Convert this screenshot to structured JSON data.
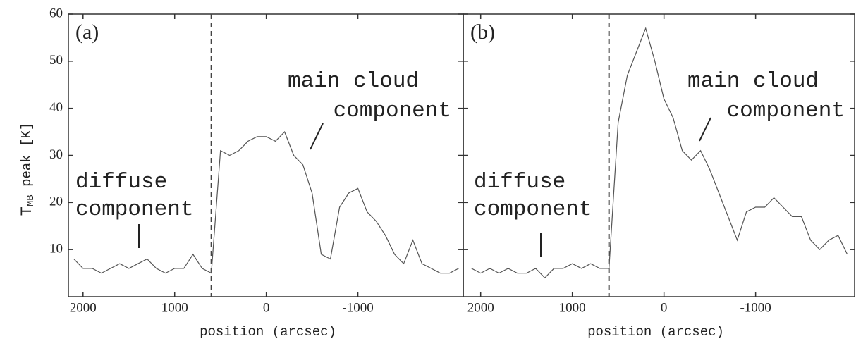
{
  "chart_data": [
    {
      "type": "line",
      "title": "(a)",
      "xlabel": "position (arcsec)",
      "ylabel": {
        "main": "T",
        "sub": "MB",
        "rest": " peak [K]"
      },
      "color": "#555555",
      "x": [
        2100,
        2000,
        1900,
        1800,
        1700,
        1600,
        1500,
        1400,
        1300,
        1200,
        1100,
        1000,
        900,
        800,
        700,
        600,
        500,
        400,
        300,
        200,
        100,
        0,
        -100,
        -200,
        -300,
        -400,
        -500,
        -600,
        -700,
        -800,
        -900,
        -1000,
        -1100,
        -1200,
        -1300,
        -1400,
        -1500,
        -1600,
        -1700,
        -1800,
        -1900,
        -2000,
        -2100
      ],
      "values": [
        8,
        6,
        6,
        5,
        6,
        7,
        6,
        7,
        8,
        6,
        5,
        6,
        6,
        9,
        6,
        5,
        31,
        30,
        31,
        33,
        34,
        34,
        33,
        35,
        30,
        28,
        22,
        9,
        8,
        19,
        22,
        23,
        18,
        16,
        13,
        9,
        7,
        12,
        7,
        6,
        5,
        5,
        6
      ],
      "xlim": [
        2160,
        -2150
      ],
      "xticks": [
        2000,
        1000,
        0,
        -1000
      ],
      "ylim": [
        0,
        60
      ],
      "yticks": [
        10,
        20,
        30,
        40,
        50,
        60
      ],
      "show_ytick_labels": true,
      "dashed_x": 600,
      "annotations": [
        [
          "main cloud",
          "component"
        ],
        [
          "diffuse",
          "component"
        ]
      ]
    },
    {
      "type": "line",
      "title": "(b)",
      "xlabel": "position (arcsec)",
      "color": "#555555",
      "x": [
        2100,
        2000,
        1900,
        1800,
        1700,
        1600,
        1500,
        1400,
        1300,
        1200,
        1100,
        1000,
        900,
        800,
        700,
        600,
        500,
        400,
        300,
        200,
        100,
        0,
        -100,
        -200,
        -300,
        -400,
        -500,
        -600,
        -700,
        -800,
        -900,
        -1000,
        -1100,
        -1200,
        -1300,
        -1400,
        -1500,
        -1600,
        -1700,
        -1800,
        -1900,
        -2000
      ],
      "values": [
        6,
        5,
        6,
        5,
        6,
        5,
        5,
        6,
        4,
        6,
        6,
        7,
        6,
        7,
        6,
        6,
        37,
        47,
        52,
        57,
        50,
        42,
        38,
        31,
        29,
        31,
        27,
        22,
        17,
        12,
        18,
        19,
        19,
        21,
        19,
        17,
        17,
        12,
        10,
        12,
        13,
        9
      ],
      "xlim": [
        2190,
        -2080
      ],
      "xticks": [
        2000,
        1000,
        0,
        -1000
      ],
      "ylim": [
        0,
        60
      ],
      "yticks": [
        10,
        20,
        30,
        40,
        50,
        60
      ],
      "show_ytick_labels": false,
      "dashed_x": 600,
      "annotations": [
        [
          "main cloud",
          "component"
        ],
        [
          "diffuse",
          "component"
        ]
      ]
    }
  ]
}
